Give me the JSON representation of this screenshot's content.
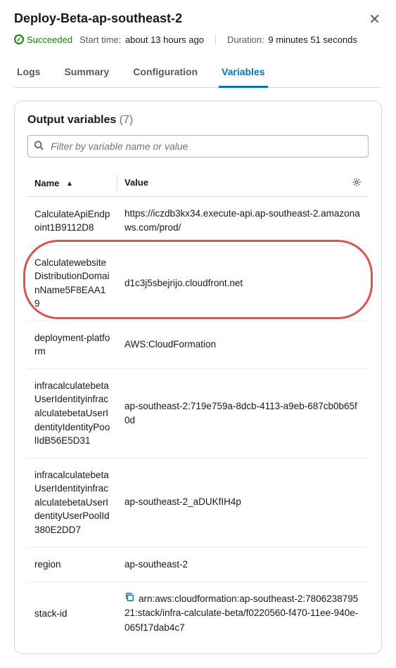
{
  "header": {
    "title": "Deploy-Beta-ap-southeast-2",
    "status_label": "Succeeded",
    "start_label": "Start time:",
    "start_value": "about 13 hours ago",
    "duration_label": "Duration:",
    "duration_value": "9 minutes 51 seconds"
  },
  "tabs": {
    "logs": "Logs",
    "summary": "Summary",
    "configuration": "Configuration",
    "variables": "Variables",
    "active": "variables"
  },
  "card": {
    "title": "Output variables",
    "count": "(7)",
    "filter_placeholder": "Filter by variable name or value"
  },
  "table": {
    "col_name": "Name",
    "col_value": "Value",
    "rows": [
      {
        "name": "CalculateApiEndpoint1B9112D8",
        "value": "https://iczdb3kx34.execute-api.ap-southeast-2.amazonaws.com/prod/",
        "copy": false,
        "highlight": false
      },
      {
        "name": "CalculatewebsiteDistributionDomainName5F8EAA19",
        "value": "d1c3j5sbejrijo.cloudfront.net",
        "copy": false,
        "highlight": true
      },
      {
        "name": "deployment-platform",
        "value": "AWS:CloudFormation",
        "copy": false,
        "highlight": false
      },
      {
        "name": "infracalculatebetaUserIdentityinfracalculatebetaUserIdentityIdentityPoolIdB56E5D31",
        "value": "ap-southeast-2:719e759a-8dcb-4113-a9eb-687cb0b65f0d",
        "copy": false,
        "highlight": false
      },
      {
        "name": "infracalculatebetaUserIdentityinfracalculatebetaUserIdentityUserPoolId380E2DD7",
        "value": "ap-southeast-2_aDUKfIH4p",
        "copy": false,
        "highlight": false
      },
      {
        "name": "region",
        "value": "ap-southeast-2",
        "copy": false,
        "highlight": false
      },
      {
        "name": "stack-id",
        "value": "arn:aws:cloudformation:ap-southeast-2:780623879521:stack/infra-calculate-beta/f0220560-f470-11ee-940e-065f17dab4c7",
        "copy": true,
        "highlight": false
      }
    ]
  },
  "colors": {
    "accent": "#0073bb",
    "success": "#1d8102",
    "highlight_ring": "#d9534f",
    "border": "#d5dbdb",
    "text": "#16191f",
    "muted": "#545b64"
  }
}
